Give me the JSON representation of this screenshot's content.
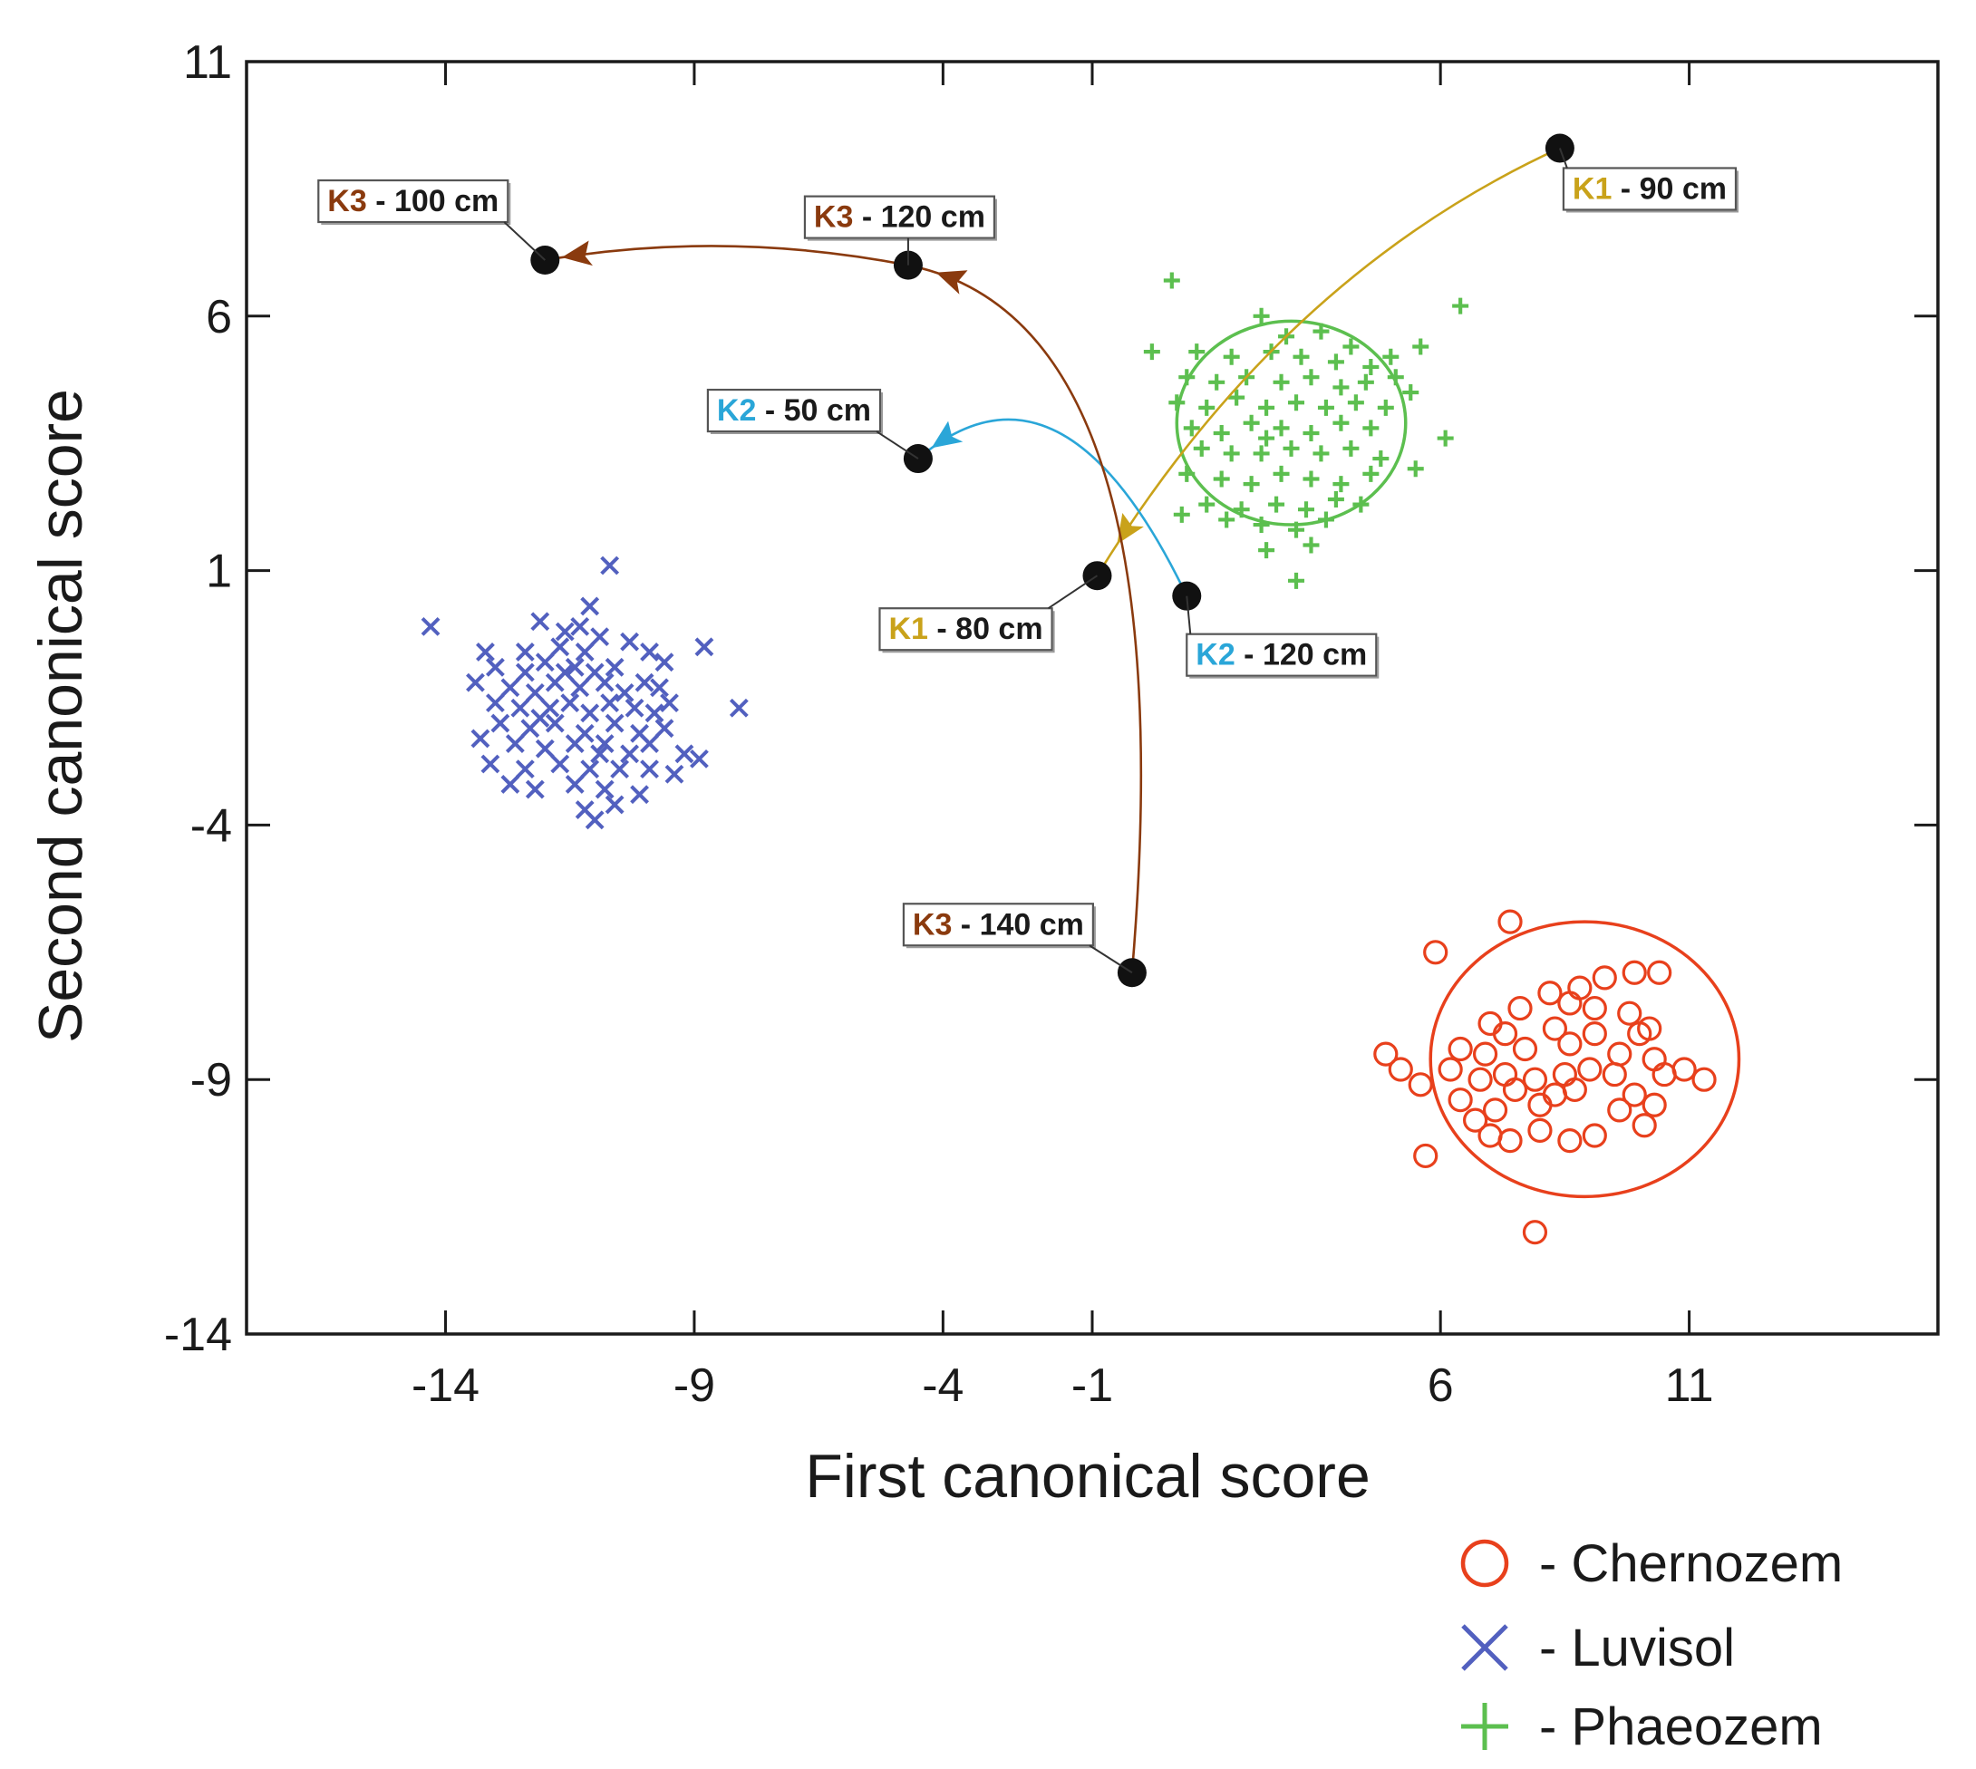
{
  "chart_data": {
    "type": "scatter",
    "title": "",
    "xlabel": "First canonical score",
    "ylabel": "Second canonical score",
    "xlim": [
      -18,
      16
    ],
    "ylim": [
      -14,
      11
    ],
    "xticks": [
      -14,
      -9,
      -4,
      -1,
      6,
      11
    ],
    "xtick_labels": [
      "-14",
      "-9",
      "-4",
      "-1",
      "6",
      "11"
    ],
    "yticks": [
      11,
      6,
      1,
      -4,
      -9,
      -14
    ],
    "ytick_labels": [
      "11",
      "6",
      "1",
      "-4",
      "-9",
      "-14"
    ],
    "colors": {
      "chernozem": "#e8401c",
      "luvisol": "#5260bf",
      "phaeozem": "#5cbf4f",
      "k1": "#c9a21a",
      "k2": "#2aa6d8",
      "k3": "#8a3a0e",
      "point": "#111111"
    },
    "series": [
      {
        "name": "Chernozem",
        "marker": "circle",
        "color_key": "chernozem",
        "ellipse": {
          "cx": 8.9,
          "cy": -8.6,
          "rx": 3.1,
          "ry": 2.7
        },
        "points": [
          [
            7.4,
            -5.9
          ],
          [
            5.9,
            -6.5
          ],
          [
            8.8,
            -7.2
          ],
          [
            9.3,
            -7.0
          ],
          [
            9.9,
            -6.9
          ],
          [
            10.4,
            -6.9
          ],
          [
            8.2,
            -7.3
          ],
          [
            7.6,
            -7.6
          ],
          [
            8.6,
            -7.5
          ],
          [
            9.1,
            -7.6
          ],
          [
            9.8,
            -7.7
          ],
          [
            10.2,
            -8.0
          ],
          [
            7.0,
            -7.9
          ],
          [
            7.3,
            -8.1
          ],
          [
            8.3,
            -8.0
          ],
          [
            9.1,
            -8.1
          ],
          [
            10.0,
            -8.1
          ],
          [
            6.4,
            -8.4
          ],
          [
            6.9,
            -8.5
          ],
          [
            7.7,
            -8.4
          ],
          [
            8.6,
            -8.3
          ],
          [
            9.6,
            -8.5
          ],
          [
            10.3,
            -8.6
          ],
          [
            4.9,
            -8.5
          ],
          [
            5.2,
            -8.8
          ],
          [
            6.2,
            -8.8
          ],
          [
            6.8,
            -9.0
          ],
          [
            7.3,
            -8.9
          ],
          [
            7.9,
            -9.0
          ],
          [
            8.5,
            -8.9
          ],
          [
            9.0,
            -8.8
          ],
          [
            9.5,
            -8.9
          ],
          [
            10.5,
            -8.9
          ],
          [
            10.9,
            -8.8
          ],
          [
            5.6,
            -9.1
          ],
          [
            7.5,
            -9.2
          ],
          [
            8.3,
            -9.3
          ],
          [
            8.7,
            -9.2
          ],
          [
            9.9,
            -9.3
          ],
          [
            11.3,
            -9.0
          ],
          [
            6.4,
            -9.4
          ],
          [
            7.1,
            -9.6
          ],
          [
            8.0,
            -9.5
          ],
          [
            9.6,
            -9.6
          ],
          [
            10.3,
            -9.5
          ],
          [
            7.4,
            -10.2
          ],
          [
            8.0,
            -10.0
          ],
          [
            8.6,
            -10.2
          ],
          [
            9.1,
            -10.1
          ],
          [
            10.1,
            -9.9
          ],
          [
            5.7,
            -10.5
          ],
          [
            7.0,
            -10.1
          ],
          [
            7.9,
            -12.0
          ],
          [
            6.7,
            -9.8
          ]
        ]
      },
      {
        "name": "Luvisol",
        "marker": "x",
        "color_key": "luvisol",
        "points": [
          [
            -10.7,
            1.1
          ],
          [
            -11.1,
            0.3
          ],
          [
            -12.1,
            0.0
          ],
          [
            -11.3,
            -0.1
          ],
          [
            -11.6,
            -0.2
          ],
          [
            -10.9,
            -0.3
          ],
          [
            -12.4,
            -0.6
          ],
          [
            -11.7,
            -0.5
          ],
          [
            -11.2,
            -0.6
          ],
          [
            -10.3,
            -0.4
          ],
          [
            -14.3,
            -0.1
          ],
          [
            -13.2,
            -0.6
          ],
          [
            -13.0,
            -0.9
          ],
          [
            -12.4,
            -1.0
          ],
          [
            -12.0,
            -0.8
          ],
          [
            -11.4,
            -0.9
          ],
          [
            -11.0,
            -1.0
          ],
          [
            -10.6,
            -0.9
          ],
          [
            -9.9,
            -0.6
          ],
          [
            -9.6,
            -0.8
          ],
          [
            -8.8,
            -0.5
          ],
          [
            -13.4,
            -1.2
          ],
          [
            -12.7,
            -1.3
          ],
          [
            -12.2,
            -1.4
          ],
          [
            -11.8,
            -1.2
          ],
          [
            -11.3,
            -1.3
          ],
          [
            -10.8,
            -1.2
          ],
          [
            -10.4,
            -1.4
          ],
          [
            -10.0,
            -1.2
          ],
          [
            -9.7,
            -1.3
          ],
          [
            -8.1,
            -1.7
          ],
          [
            -13.0,
            -1.6
          ],
          [
            -12.5,
            -1.7
          ],
          [
            -11.9,
            -1.7
          ],
          [
            -11.5,
            -1.6
          ],
          [
            -11.1,
            -1.8
          ],
          [
            -10.7,
            -1.6
          ],
          [
            -10.2,
            -1.7
          ],
          [
            -9.8,
            -1.8
          ],
          [
            -9.5,
            -1.6
          ],
          [
            -12.9,
            -2.0
          ],
          [
            -12.3,
            -2.1
          ],
          [
            -11.8,
            -2.0
          ],
          [
            -11.2,
            -2.2
          ],
          [
            -10.6,
            -2.0
          ],
          [
            -10.1,
            -2.2
          ],
          [
            -9.6,
            -2.1
          ],
          [
            -13.3,
            -2.3
          ],
          [
            -12.6,
            -2.4
          ],
          [
            -12.0,
            -2.5
          ],
          [
            -11.4,
            -2.4
          ],
          [
            -10.8,
            -2.4
          ],
          [
            -10.3,
            -2.6
          ],
          [
            -9.9,
            -2.4
          ],
          [
            -9.2,
            -2.6
          ],
          [
            -13.1,
            -2.8
          ],
          [
            -12.4,
            -2.9
          ],
          [
            -11.7,
            -2.8
          ],
          [
            -11.1,
            -2.9
          ],
          [
            -10.5,
            -2.9
          ],
          [
            -9.9,
            -2.9
          ],
          [
            -8.9,
            -2.7
          ],
          [
            -12.2,
            -3.3
          ],
          [
            -11.4,
            -3.2
          ],
          [
            -10.8,
            -3.3
          ],
          [
            -10.1,
            -3.4
          ],
          [
            -11.2,
            -3.7
          ],
          [
            -10.6,
            -3.6
          ],
          [
            -11.0,
            -3.9
          ],
          [
            -12.7,
            -3.2
          ],
          [
            -9.4,
            -3.0
          ],
          [
            -11.6,
            -1.0
          ],
          [
            -10.9,
            -2.6
          ],
          [
            -12.1,
            -1.9
          ]
        ]
      },
      {
        "name": "Phaeozem",
        "marker": "plus",
        "color_key": "phaeozem",
        "ellipse": {
          "cx": 3.0,
          "cy": 3.9,
          "rx": 2.3,
          "ry": 2.0
        },
        "points": [
          [
            0.6,
            6.7
          ],
          [
            6.4,
            6.2
          ],
          [
            2.4,
            6.0
          ],
          [
            2.9,
            5.6
          ],
          [
            3.6,
            5.7
          ],
          [
            4.2,
            5.4
          ],
          [
            1.1,
            5.3
          ],
          [
            1.8,
            5.2
          ],
          [
            2.6,
            5.3
          ],
          [
            3.2,
            5.2
          ],
          [
            3.9,
            5.1
          ],
          [
            4.6,
            5.0
          ],
          [
            5.0,
            5.2
          ],
          [
            5.6,
            5.4
          ],
          [
            0.2,
            5.3
          ],
          [
            0.9,
            4.8
          ],
          [
            1.5,
            4.7
          ],
          [
            2.1,
            4.8
          ],
          [
            2.8,
            4.7
          ],
          [
            3.4,
            4.8
          ],
          [
            4.0,
            4.6
          ],
          [
            4.5,
            4.7
          ],
          [
            5.1,
            4.8
          ],
          [
            0.7,
            4.3
          ],
          [
            1.3,
            4.2
          ],
          [
            1.9,
            4.4
          ],
          [
            2.5,
            4.2
          ],
          [
            3.1,
            4.3
          ],
          [
            3.7,
            4.2
          ],
          [
            4.3,
            4.3
          ],
          [
            4.9,
            4.2
          ],
          [
            5.4,
            4.5
          ],
          [
            1.0,
            3.8
          ],
          [
            1.6,
            3.7
          ],
          [
            2.2,
            3.9
          ],
          [
            2.8,
            3.8
          ],
          [
            3.4,
            3.7
          ],
          [
            4.0,
            3.9
          ],
          [
            4.6,
            3.8
          ],
          [
            1.2,
            3.4
          ],
          [
            1.8,
            3.3
          ],
          [
            2.4,
            3.3
          ],
          [
            3.0,
            3.4
          ],
          [
            3.6,
            3.3
          ],
          [
            4.2,
            3.4
          ],
          [
            4.8,
            3.2
          ],
          [
            6.1,
            3.6
          ],
          [
            0.9,
            2.9
          ],
          [
            1.6,
            2.8
          ],
          [
            2.2,
            2.7
          ],
          [
            2.8,
            2.9
          ],
          [
            3.4,
            2.8
          ],
          [
            4.0,
            2.7
          ],
          [
            4.6,
            2.9
          ],
          [
            5.5,
            3.0
          ],
          [
            1.3,
            2.3
          ],
          [
            2.0,
            2.2
          ],
          [
            2.7,
            2.3
          ],
          [
            3.3,
            2.2
          ],
          [
            3.9,
            2.4
          ],
          [
            4.4,
            2.3
          ],
          [
            1.7,
            2.0
          ],
          [
            2.4,
            1.9
          ],
          [
            3.1,
            1.8
          ],
          [
            3.7,
            2.0
          ],
          [
            2.5,
            1.4
          ],
          [
            3.4,
            1.5
          ],
          [
            3.1,
            0.8
          ],
          [
            0.8,
            2.1
          ],
          [
            2.5,
            3.6
          ]
        ]
      }
    ],
    "trajectories": [
      {
        "id": "k1",
        "color_key": "k1",
        "from_label": {
          "prefix": "K1",
          "suffix": " - 90 cm"
        },
        "to_label": {
          "prefix": "K1",
          "suffix": " - 80 cm"
        },
        "from": [
          8.4,
          9.3
        ],
        "to": [
          -0.9,
          0.9
        ],
        "control": [
          2.8,
          6.8
        ]
      },
      {
        "id": "k2",
        "color_key": "k2",
        "from_label": {
          "prefix": "K2",
          "suffix": " - 120 cm"
        },
        "to_label": {
          "prefix": "K2",
          "suffix": " - 50 cm"
        },
        "from": [
          0.9,
          0.5
        ],
        "to": [
          -4.5,
          3.2
        ],
        "control": [
          -1.6,
          5.6
        ]
      },
      {
        "id": "k3a",
        "color_key": "k3",
        "from_label": {
          "prefix": "K3",
          "suffix": " - 140 cm"
        },
        "to_label": {
          "prefix": "K3",
          "suffix": " - 120 cm"
        },
        "from": [
          -0.2,
          -6.9
        ],
        "to": [
          -4.7,
          7.0
        ],
        "control": [
          0.9,
          5.9
        ]
      },
      {
        "id": "k3b",
        "color_key": "k3",
        "from_label": {
          "prefix": "K3",
          "suffix": " - 120 cm"
        },
        "to_label": {
          "prefix": "K3",
          "suffix": " - 100 cm"
        },
        "from": [
          -4.7,
          7.0
        ],
        "to": [
          -12.0,
          7.1
        ],
        "control": [
          -8.4,
          7.7
        ]
      }
    ],
    "point_labels": [
      {
        "name": "k1-90",
        "prefix": "K1",
        "suffix": " - 90 cm",
        "color_key": "k1",
        "point": [
          8.4,
          9.3
        ]
      },
      {
        "name": "k1-80",
        "prefix": "K1",
        "suffix": " - 80 cm",
        "color_key": "k1",
        "point": [
          -0.9,
          0.9
        ]
      },
      {
        "name": "k2-120",
        "prefix": "K2",
        "suffix": " - 120 cm",
        "color_key": "k2",
        "point": [
          0.9,
          0.5
        ]
      },
      {
        "name": "k2-50",
        "prefix": "K2",
        "suffix": " - 50 cm",
        "color_key": "k2",
        "point": [
          -4.5,
          3.2
        ]
      },
      {
        "name": "k3-140",
        "prefix": "K3",
        "suffix": " - 140 cm",
        "color_key": "k3",
        "point": [
          -0.2,
          -6.9
        ]
      },
      {
        "name": "k3-120",
        "prefix": "K3",
        "suffix": " - 120 cm",
        "color_key": "k3",
        "point": [
          -4.7,
          7.0
        ]
      },
      {
        "name": "k3-100",
        "prefix": "K3",
        "suffix": " - 100 cm",
        "color_key": "k3",
        "point": [
          -12.0,
          7.1
        ]
      }
    ],
    "legend": [
      {
        "marker": "circle",
        "color_key": "chernozem",
        "text": "- Chernozem"
      },
      {
        "marker": "x",
        "color_key": "luvisol",
        "text": "- Luvisol"
      },
      {
        "marker": "plus",
        "color_key": "phaeozem",
        "text": "- Phaeozem"
      }
    ],
    "legend_position": "below-right"
  }
}
